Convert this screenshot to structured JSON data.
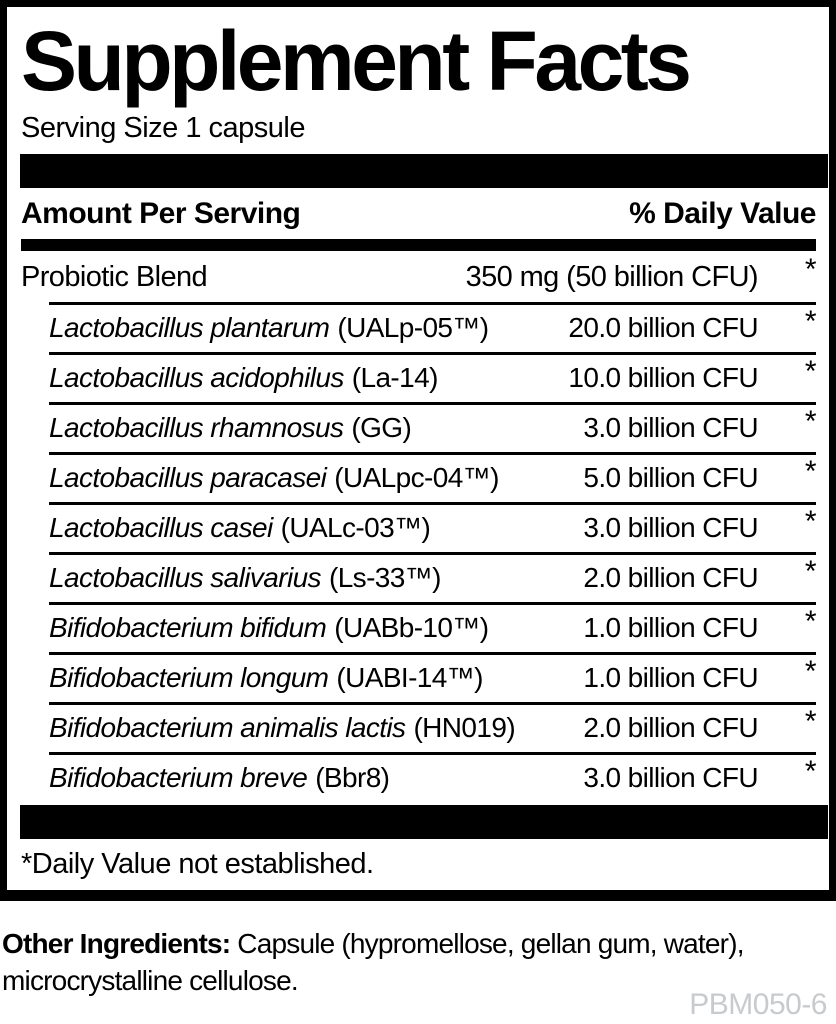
{
  "panel": {
    "title": "Supplement Facts",
    "serving_size": "Serving Size 1 capsule",
    "columns": {
      "amount_per_serving": "Amount Per Serving",
      "percent_daily_value": "% Daily Value"
    },
    "blend": {
      "name": "Probiotic Blend",
      "amount": "350 mg (50 billion CFU)",
      "daily_value": "*"
    },
    "strains": [
      {
        "species": "Lactobacillus plantarum",
        "strain": "(UALp-05™)",
        "amount": "20.0 billion CFU",
        "daily_value": "*"
      },
      {
        "species": "Lactobacillus acidophilus",
        "strain": "(La-14)",
        "amount": "10.0 billion CFU",
        "daily_value": "*"
      },
      {
        "species": "Lactobacillus rhamnosus",
        "strain": "(GG)",
        "amount": "3.0 billion CFU",
        "daily_value": "*"
      },
      {
        "species": "Lactobacillus paracasei",
        "strain": "(UALpc-04™)",
        "amount": "5.0 billion CFU",
        "daily_value": "*"
      },
      {
        "species": "Lactobacillus casei",
        "strain": "(UALc-03™)",
        "amount": "3.0 billion CFU",
        "daily_value": "*"
      },
      {
        "species": "Lactobacillus salivarius",
        "strain": "(Ls-33™)",
        "amount": "2.0 billion CFU",
        "daily_value": "*"
      },
      {
        "species": "Bifidobacterium bifidum",
        "strain": "(UABb-10™)",
        "amount": "1.0 billion CFU",
        "daily_value": "*"
      },
      {
        "species": "Bifidobacterium longum",
        "strain": "(UABI-14™)",
        "amount": "1.0 billion CFU",
        "daily_value": "*"
      },
      {
        "species": "Bifidobacterium animalis lactis",
        "strain": "(HN019)",
        "amount": "2.0 billion CFU",
        "daily_value": "*"
      },
      {
        "species": "Bifidobacterium breve",
        "strain": "(Bbr8)",
        "amount": "3.0 billion CFU",
        "daily_value": "*"
      }
    ],
    "footnote": "*Daily Value not established."
  },
  "other_ingredients": {
    "label": "Other Ingredients:",
    "text": " Capsule (hypromellose, gellan gum, water), microcrystalline cellulose."
  },
  "product_code": "PBM050-6",
  "colors": {
    "text": "#000000",
    "bars": "#000000",
    "product_code_gray": "#c8cbcd"
  }
}
